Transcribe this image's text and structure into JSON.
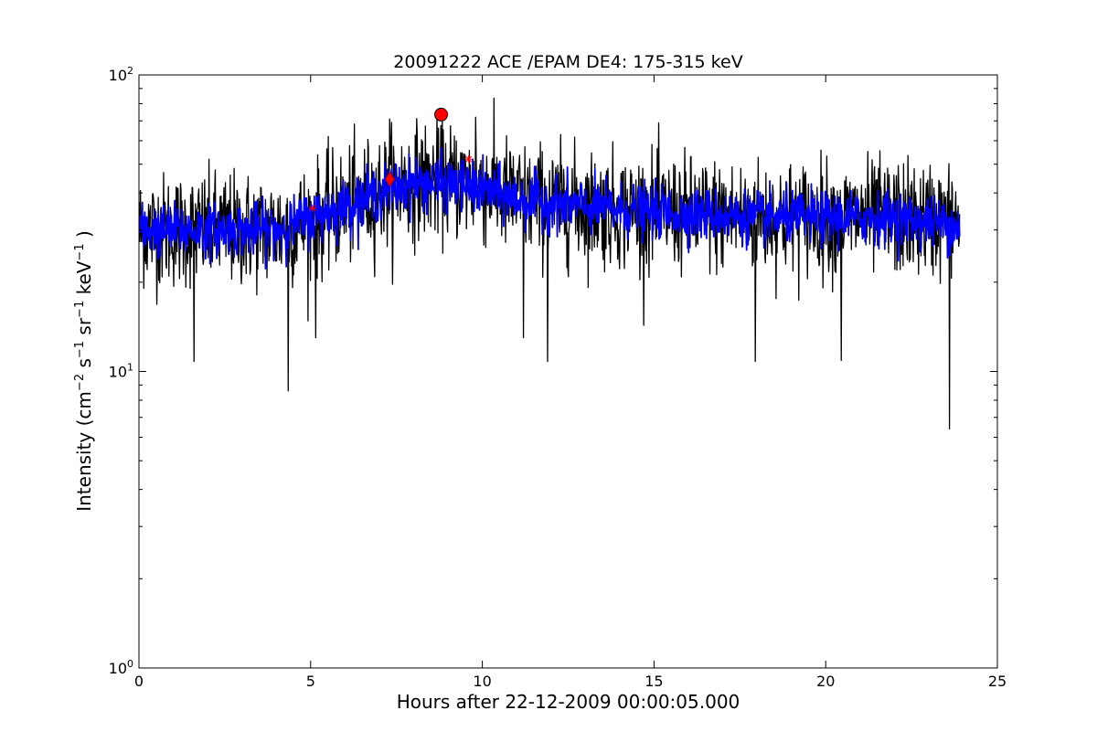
{
  "chart_data": {
    "type": "line",
    "title": "20091222 ACE /EPAM DE4: 175-315 keV",
    "xlabel": "Hours after 22-12-2009 00:00:05.000",
    "ylabel": {
      "parts": [
        "Intensity (cm",
        "−2",
        " s",
        "−1",
        " sr",
        "−1",
        " keV",
        "−1",
        " )"
      ]
    },
    "xlim": [
      0,
      25
    ],
    "ylim": [
      1,
      100
    ],
    "yscale": "log",
    "grid": false,
    "x_ticks": [
      {
        "value": 0,
        "label": "0"
      },
      {
        "value": 5,
        "label": "5"
      },
      {
        "value": 10,
        "label": "10"
      },
      {
        "value": 15,
        "label": "15"
      },
      {
        "value": 20,
        "label": "20"
      },
      {
        "value": 25,
        "label": "25"
      }
    ],
    "y_ticks": [
      {
        "value": 1,
        "base": "10",
        "exp": "0"
      },
      {
        "value": 10,
        "base": "10",
        "exp": "1"
      },
      {
        "value": 100,
        "base": "10",
        "exp": "2"
      }
    ],
    "series": [
      {
        "role": "raw intensity",
        "color": "#000000",
        "x_start": 0.0,
        "x_end": 23.9,
        "profile": [
          [
            0,
            30
          ],
          [
            2,
            30
          ],
          [
            4,
            30
          ],
          [
            5,
            32
          ],
          [
            6,
            36
          ],
          [
            7,
            40
          ],
          [
            8,
            44
          ],
          [
            9,
            44
          ],
          [
            10,
            42
          ],
          [
            11,
            38
          ],
          [
            12,
            37
          ],
          [
            14,
            35
          ],
          [
            16,
            34
          ],
          [
            18,
            33
          ],
          [
            20,
            33
          ],
          [
            22,
            33
          ],
          [
            23.9,
            32
          ]
        ],
        "spikes": [
          {
            "x": 1.6,
            "y": 10.8
          },
          {
            "x": 4.35,
            "y": 8.6
          },
          {
            "x": 5.15,
            "y": 13
          },
          {
            "x": 7.3,
            "y": 71
          },
          {
            "x": 8.8,
            "y": 57
          },
          {
            "x": 9.8,
            "y": 72
          },
          {
            "x": 11.2,
            "y": 13
          },
          {
            "x": 11.9,
            "y": 10.8
          },
          {
            "x": 17.95,
            "y": 10.8
          },
          {
            "x": 20.45,
            "y": 10.9
          },
          {
            "x": 23.6,
            "y": 6.4
          }
        ]
      },
      {
        "role": "smoothed intensity",
        "color": "#0000ff",
        "x_start": 0.0,
        "x_end": 23.9,
        "profile": [
          [
            0,
            30
          ],
          [
            2,
            30
          ],
          [
            4,
            30
          ],
          [
            5,
            33
          ],
          [
            6,
            36
          ],
          [
            7,
            40
          ],
          [
            8,
            43
          ],
          [
            9,
            43
          ],
          [
            10,
            41
          ],
          [
            11,
            38
          ],
          [
            12,
            37
          ],
          [
            14,
            35
          ],
          [
            16,
            34
          ],
          [
            18,
            33
          ],
          [
            20,
            33
          ],
          [
            22,
            33
          ],
          [
            23.9,
            31
          ]
        ]
      }
    ],
    "markers": [
      {
        "role": "peak",
        "shape": "circle",
        "x": 8.8,
        "y": 73.5,
        "color": "#ff0000"
      },
      {
        "role": "onset",
        "shape": "diamond",
        "x": 7.3,
        "y": 44.5,
        "color": "#ff0000"
      },
      {
        "role": "point",
        "shape": "star",
        "x": 5.05,
        "y": 35.5,
        "color": "#ff0000"
      },
      {
        "role": "point",
        "shape": "star",
        "x": 9.6,
        "y": 52,
        "color": "#ff0000"
      }
    ]
  }
}
